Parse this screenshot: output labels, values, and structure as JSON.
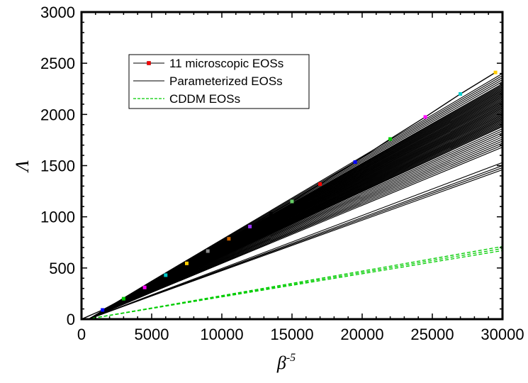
{
  "chart_data": {
    "type": "line",
    "xlabel": "β",
    "xlabel_sup": "-5",
    "ylabel": "Λ",
    "xlim": [
      0,
      30000
    ],
    "ylim": [
      0,
      3000
    ],
    "x_ticks": [
      0,
      5000,
      10000,
      15000,
      20000,
      25000,
      30000
    ],
    "y_ticks": [
      0,
      500,
      1000,
      1500,
      2000,
      2500,
      3000
    ],
    "grid": false,
    "legend_position": "top-left",
    "legend": [
      {
        "label": "11 microscopic EOSs",
        "style": "black line with colored square markers"
      },
      {
        "label": "Parameterized EOSs",
        "style": "black solid line"
      },
      {
        "label": "CDDM EOSs",
        "style": "green dashed line"
      }
    ],
    "series": [
      {
        "name": "11 microscopic EOSs",
        "color": "#000000",
        "marker_colors": [
          "#ff0000",
          "#0000ff",
          "#00cc00",
          "#ff00ff",
          "#00cccc",
          "#ffcc00",
          "#888888",
          "#cc6600",
          "#9933ff",
          "#000000",
          "#66cc66"
        ],
        "x": [
          0,
          1500,
          3000,
          4500,
          6000,
          7500,
          9000,
          10500,
          12000,
          13500,
          15000,
          17000,
          19500,
          22000,
          24500,
          27000,
          29500
        ],
        "y": [
          0,
          90,
          200,
          310,
          430,
          545,
          665,
          785,
          905,
          1030,
          1150,
          1320,
          1535,
          1760,
          1975,
          2200,
          2410
        ]
      },
      {
        "name": "Parameterized EOSs",
        "color": "#000000",
        "endpoints_at_x_30000": [
          2400,
          2380,
          2360,
          2340,
          2320,
          2300,
          2290,
          2280,
          2270,
          2260,
          2250,
          2240,
          2230,
          2220,
          2210,
          2200,
          2190,
          2180,
          2170,
          2160,
          2150,
          2140,
          2130,
          2120,
          2110,
          2100,
          2090,
          2080,
          2070,
          2060,
          2050,
          2040,
          2030,
          2020,
          2010,
          2000,
          1990,
          1980,
          1970,
          1960,
          1950,
          1940,
          1930,
          1920,
          1910,
          1900,
          1890,
          1880,
          1860,
          1840,
          1820,
          1800,
          1780,
          1760,
          1740,
          1720,
          1700,
          1680,
          1530,
          1500,
          1480,
          1460
        ]
      },
      {
        "name": "CDDM EOSs",
        "color": "#00cc00",
        "dashed": true,
        "x": [
          0,
          30000
        ],
        "y_sets": [
          [
            0,
            710
          ],
          [
            0,
            690
          ],
          [
            0,
            670
          ]
        ]
      }
    ]
  }
}
